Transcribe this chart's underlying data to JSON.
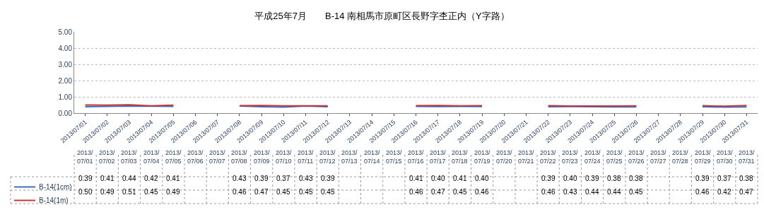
{
  "chart_data": {
    "type": "line",
    "title": "平成25年7月　　B-14 南相馬市原町区長野字杢正内（Y字路）",
    "categories": [
      "2013/07/01",
      "2013/07/02",
      "2013/07/03",
      "2013/07/04",
      "2013/07/05",
      "2013/07/06",
      "2013/07/07",
      "2013/07/08",
      "2013/07/09",
      "2013/07/10",
      "2013/07/11",
      "2013/07/12",
      "2013/07/13",
      "2013/07/14",
      "2013/07/15",
      "2013/07/16",
      "2013/07/17",
      "2013/07/18",
      "2013/07/19",
      "2013/07/20",
      "2013/07/21",
      "2013/07/22",
      "2013/07/23",
      "2013/07/24",
      "2013/07/25",
      "2013/07/26",
      "2013/07/27",
      "2013/07/28",
      "2013/07/29",
      "2013/07/30",
      "2013/07/31"
    ],
    "series": [
      {
        "name": "B-14(1cm)",
        "color": "#3a6fc4",
        "values": [
          0.39,
          0.41,
          0.44,
          0.42,
          0.41,
          null,
          null,
          0.43,
          0.39,
          0.37,
          0.43,
          0.39,
          null,
          null,
          null,
          0.41,
          0.4,
          0.41,
          0.4,
          null,
          null,
          0.39,
          0.4,
          0.39,
          0.38,
          0.38,
          null,
          null,
          0.39,
          0.37,
          0.38
        ],
        "value_labels": [
          "0.39",
          "0.41",
          "0.44",
          "0.42",
          "0.41",
          null,
          null,
          "0.43",
          "0.39",
          "0.37",
          "0.43",
          "0.39",
          null,
          null,
          null,
          "0.41",
          "0.40",
          "0.41",
          "0.40",
          null,
          null,
          "0.39",
          "0.40",
          "0.39",
          "0.38",
          "0.38",
          null,
          null,
          "0.39",
          "0.37",
          "0.38"
        ]
      },
      {
        "name": "B-14(1m)",
        "color": "#c0383a",
        "values": [
          0.5,
          0.49,
          0.51,
          0.45,
          0.49,
          null,
          null,
          0.46,
          0.47,
          0.45,
          0.45,
          0.45,
          null,
          null,
          null,
          0.46,
          0.47,
          0.45,
          0.46,
          null,
          null,
          0.46,
          0.43,
          0.44,
          0.44,
          0.45,
          null,
          null,
          0.46,
          0.42,
          0.47
        ],
        "value_labels": [
          "0.50",
          "0.49",
          "0.51",
          "0.45",
          "0.49",
          null,
          null,
          "0.46",
          "0.47",
          "0.45",
          "0.45",
          "0.45",
          null,
          null,
          null,
          "0.46",
          "0.47",
          "0.45",
          "0.46",
          null,
          null,
          "0.46",
          "0.43",
          "0.44",
          "0.44",
          "0.45",
          null,
          null,
          "0.46",
          "0.42",
          "0.47"
        ]
      }
    ],
    "ylim": [
      0,
      5
    ],
    "yticks": [
      {
        "value": 0,
        "label": "0.00"
      },
      {
        "value": 1,
        "label": "1.00"
      },
      {
        "value": 2,
        "label": "2.00"
      },
      {
        "value": 3,
        "label": "3.00"
      },
      {
        "value": 4,
        "label": "4.00"
      },
      {
        "value": 5,
        "label": "5.00"
      }
    ],
    "grid": "y",
    "legend": "bottom left",
    "marker": "none",
    "line_style": "solid"
  }
}
